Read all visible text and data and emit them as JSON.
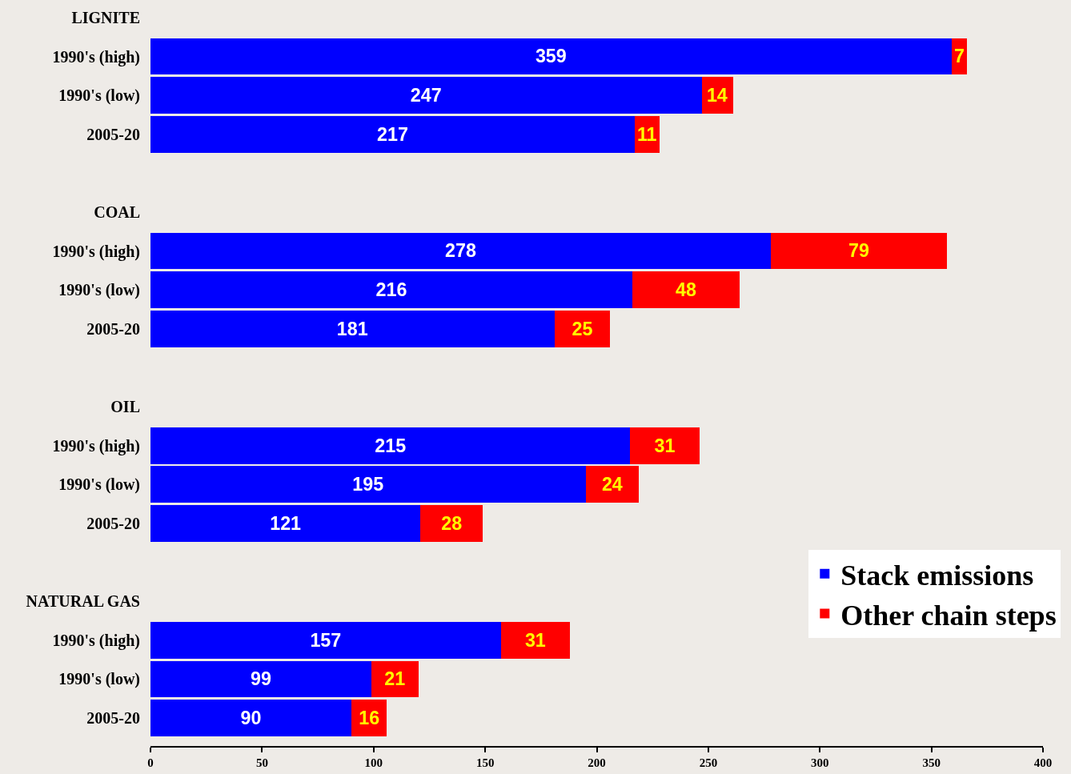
{
  "chart_data": {
    "type": "bar",
    "orientation": "horizontal",
    "stacked": true,
    "categories": [
      "LIGNITE",
      "1990's (high)",
      "1990's (low)",
      "2005-20",
      null,
      "COAL",
      "1990's (high)",
      "1990's (low)",
      "2005-20",
      null,
      "OIL",
      "1990's (high)",
      "1990's (low)",
      "2005-20",
      null,
      "NATURAL GAS",
      "1990's (high)",
      "1990's (low)",
      "2005-20"
    ],
    "series": [
      {
        "name": "Stack emissions",
        "color": "#0000ff",
        "values": [
          null,
          359,
          247,
          217,
          null,
          null,
          278,
          216,
          181,
          null,
          null,
          215,
          195,
          121,
          null,
          null,
          157,
          99,
          90
        ]
      },
      {
        "name": "Other chain steps",
        "color": "#ff0000",
        "values": [
          null,
          7,
          14,
          11,
          null,
          null,
          79,
          48,
          25,
          null,
          null,
          31,
          24,
          28,
          null,
          null,
          31,
          21,
          16
        ]
      }
    ],
    "xlim": [
      0,
      400
    ],
    "xticks": [
      0,
      50,
      100,
      150,
      200,
      250,
      300,
      350,
      400
    ],
    "data_labels": true,
    "legend": "bottom right",
    "grid": false
  }
}
